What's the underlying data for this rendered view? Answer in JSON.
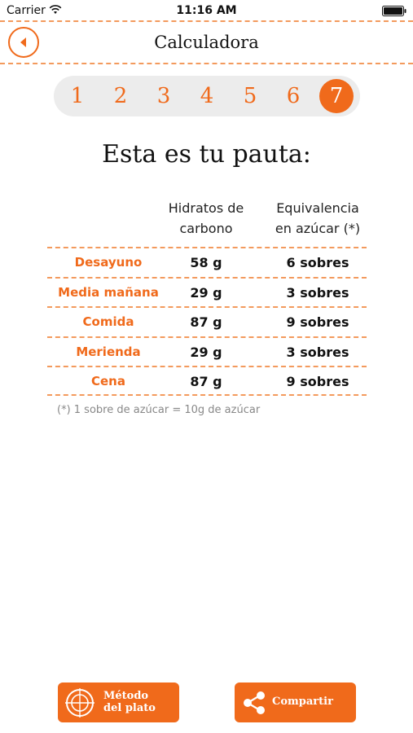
{
  "status_bar": {
    "carrier": "Carrier",
    "time": "11:16 AM"
  },
  "nav": {
    "title": "Calculadora",
    "back_icon": "chevron-left-icon"
  },
  "steps": {
    "items": [
      "1",
      "2",
      "3",
      "4",
      "5",
      "6",
      "7"
    ],
    "active_index": 6
  },
  "heading": "Esta es tu pauta:",
  "table": {
    "headers": {
      "carbs_line1": "Hidratos de",
      "carbs_line2": "carbono",
      "equiv_line1": "Equivalencia",
      "equiv_line2": "en azúcar (*)"
    },
    "rows": [
      {
        "meal": "Desayuno",
        "carbs": "58 g",
        "equiv": "6 sobres"
      },
      {
        "meal": "Media mañana",
        "carbs": "29 g",
        "equiv": "3 sobres"
      },
      {
        "meal": "Comida",
        "carbs": "87 g",
        "equiv": "9 sobres"
      },
      {
        "meal": "Merienda",
        "carbs": "29 g",
        "equiv": "3 sobres"
      },
      {
        "meal": "Cena",
        "carbs": "87 g",
        "equiv": "9 sobres"
      }
    ]
  },
  "footnote": "(*) 1 sobre de azúcar = 10g de azúcar",
  "buttons": {
    "plate_line1": "Método",
    "plate_line2": "del plato",
    "share": "Compartir"
  },
  "colors": {
    "accent": "#f06a1b",
    "dash": "#f39a5d",
    "step_bg": "#ececec"
  }
}
